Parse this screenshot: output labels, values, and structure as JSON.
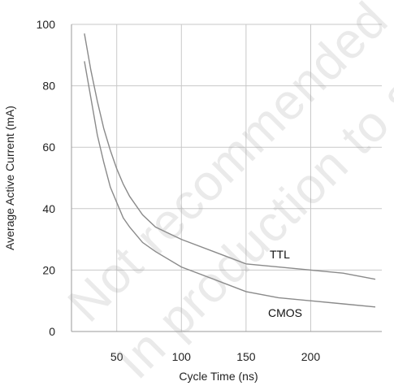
{
  "chart_data": {
    "type": "line",
    "xlabel": "Cycle Time (ns)",
    "ylabel": "Average Active Current (mA)",
    "xlim": [
      15,
      255
    ],
    "ylim": [
      0,
      100
    ],
    "xticks": [
      50,
      100,
      150,
      200
    ],
    "yticks": [
      0,
      20,
      40,
      60,
      80,
      100
    ],
    "grid": true,
    "colors": {
      "series": "#8a8a8a",
      "grid": "#c8c8c8",
      "axis": "#9a9a9a"
    },
    "series": [
      {
        "name": "TTL",
        "x": [
          25,
          30,
          35,
          40,
          45,
          50,
          55,
          60,
          70,
          80,
          100,
          125,
          150,
          175,
          200,
          225,
          250
        ],
        "y": [
          97,
          85,
          75,
          66,
          59,
          53,
          48,
          44,
          38,
          34,
          30,
          26,
          22,
          21,
          20,
          19,
          17
        ]
      },
      {
        "name": "CMOS",
        "x": [
          25,
          30,
          35,
          40,
          45,
          50,
          55,
          60,
          70,
          80,
          100,
          125,
          150,
          175,
          200,
          225,
          250
        ],
        "y": [
          88,
          76,
          64,
          55,
          47,
          42,
          37,
          34,
          29,
          26,
          21,
          17,
          13,
          11,
          10,
          9,
          8
        ]
      }
    ]
  },
  "watermark": {
    "line1": "Not recommended",
    "line2": "In production to supp"
  }
}
